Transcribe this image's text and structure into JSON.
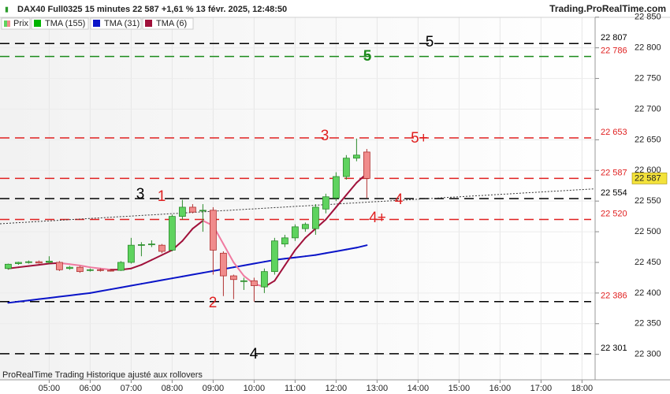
{
  "chart_data": {
    "type": "candlestick",
    "title": "DAX40 Full0325 15 minutes 22 587 +1,61 % 13 févr. 2025, 12:48:50",
    "source": "Trading.ProRealTime.com",
    "footer": "ProRealTime Trading  Historique ajusté aux rollovers",
    "price_name": "Prix",
    "up_color": "#5fd35f",
    "down_color": "#f08c8c",
    "x": [
      4,
      4.25,
      4.5,
      4.75,
      5,
      5.25,
      5.5,
      5.75,
      6,
      6.25,
      6.5,
      6.75,
      7,
      7.25,
      7.5,
      7.75,
      8,
      8.25,
      8.5,
      8.75,
      9,
      9.25,
      9.5,
      9.75,
      10,
      10.25,
      10.5,
      10.75,
      11,
      11.25,
      11.5,
      11.75,
      12,
      12.25,
      12.5,
      12.75
    ],
    "open": [
      22440,
      22448,
      22450,
      22451,
      22450,
      22450,
      22440,
      22442,
      22437,
      22438,
      22437,
      22437,
      22450,
      22478,
      22479,
      22478,
      22470,
      22525,
      22540,
      22534,
      22535,
      22465,
      22428,
      22420,
      22420,
      22410,
      22435,
      22480,
      22490,
      22505,
      22505,
      22537,
      22555,
      22590,
      22620,
      22630
    ],
    "high": [
      22448,
      22451,
      22453,
      22453,
      22460,
      22452,
      22444,
      22444,
      22440,
      22440,
      22439,
      22452,
      22490,
      22483,
      22486,
      22480,
      22528,
      22552,
      22545,
      22545,
      22540,
      22468,
      22430,
      22425,
      22425,
      22440,
      22490,
      22495,
      22512,
      22515,
      22545,
      22562,
      22597,
      22625,
      22652,
      22635
    ],
    "low": [
      22438,
      22446,
      22448,
      22448,
      22448,
      22436,
      22438,
      22433,
      22435,
      22435,
      22435,
      22436,
      22448,
      22460,
      22475,
      22465,
      22468,
      22520,
      22530,
      22500,
      22430,
      22395,
      22390,
      22405,
      22386,
      22400,
      22430,
      22475,
      22485,
      22500,
      22495,
      22530,
      22550,
      22585,
      22615,
      22555
    ],
    "close": [
      22447,
      22450,
      22451,
      22449,
      22452,
      22438,
      22442,
      22435,
      22438,
      22437,
      22436,
      22450,
      22478,
      22479,
      22480,
      22468,
      22525,
      22540,
      22532,
      22535,
      22470,
      22428,
      22422,
      22420,
      22412,
      22435,
      22485,
      22490,
      22508,
      22512,
      22540,
      22557,
      22590,
      22620,
      22625,
      22587
    ],
    "series": [
      {
        "name": "TMA (155)",
        "color": "#00b400",
        "values": [
          null,
          null,
          null,
          null,
          null,
          null,
          null,
          null,
          null,
          null,
          null,
          null,
          null,
          null,
          null,
          null,
          null,
          null,
          null,
          null,
          null,
          null,
          null,
          null,
          null,
          null,
          null,
          null,
          null,
          null,
          null,
          null,
          null,
          null,
          null,
          null
        ]
      },
      {
        "name": "TMA (31)",
        "color": "#0a14c8",
        "values": [
          22384,
          22386,
          22388,
          22390,
          22392,
          22394,
          22396,
          22398,
          22400,
          22403,
          22406,
          22409,
          22412,
          22415,
          22418,
          22421,
          22424,
          22427,
          22430,
          22433,
          22436,
          22439,
          22442,
          22445,
          22448,
          22451,
          22454,
          22456,
          22458,
          22460,
          22462,
          22465,
          22468,
          22471,
          22474,
          22478
        ]
      },
      {
        "name": "TMA (6)",
        "color": "#a0103a",
        "falling_color": "#f07aa0",
        "values": [
          22440,
          22442,
          22444,
          22446,
          22448,
          22449,
          22447,
          22445,
          22442,
          22440,
          22438,
          22438,
          22440,
          22446,
          22454,
          22462,
          22470,
          22485,
          22505,
          22518,
          22510,
          22480,
          22450,
          22428,
          22415,
          22410,
          22420,
          22445,
          22470,
          22490,
          22505,
          22520,
          22540,
          22560,
          22580,
          22595
        ]
      }
    ],
    "levels": [
      {
        "value": 22807,
        "label": "22 807",
        "line_color": "#000000",
        "label_color": "#000000"
      },
      {
        "value": 22786,
        "label": "22 786",
        "line_color": "#1a8a1a",
        "label_color": "#e02020"
      },
      {
        "value": 22653,
        "label": "22 653",
        "line_color": "#e02020",
        "label_color": "#e02020"
      },
      {
        "value": 22587,
        "label": "22 587",
        "line_color": "#e02020",
        "label_color": "#e02020"
      },
      {
        "value": 22554,
        "label": "22 554",
        "line_color": "#000000",
        "label_color": "#000000"
      },
      {
        "value": 22520,
        "label": "22 520",
        "line_color": "#e02020",
        "label_color": "#e02020"
      },
      {
        "value": 22386,
        "label": "22 386",
        "line_color": "#000000",
        "label_color": "#e02020"
      },
      {
        "value": 22301,
        "label": "22 301",
        "line_color": "#000000",
        "label_color": "#000000"
      }
    ],
    "last": {
      "value": 22587,
      "label": "22 587",
      "color": "#f3e23a"
    },
    "trendline": {
      "values": [
        22513,
        22570
      ]
    },
    "annotations": [
      "5",
      "5",
      "3",
      "5+",
      "3",
      "1",
      "4",
      "4+",
      "2",
      "4"
    ],
    "xlim": [
      3.8,
      18.32
    ],
    "xticks": [
      {
        "value": 5,
        "label": "05:00"
      },
      {
        "value": 6,
        "label": "06:00"
      },
      {
        "value": 7,
        "label": "07:00"
      },
      {
        "value": 8,
        "label": "08:00"
      },
      {
        "value": 9,
        "label": "09:00"
      },
      {
        "value": 10,
        "label": "10:00"
      },
      {
        "value": 11,
        "label": "11:00"
      },
      {
        "value": 12,
        "label": "12:00"
      },
      {
        "value": 13,
        "label": "13:00"
      },
      {
        "value": 14,
        "label": "14:00"
      },
      {
        "value": 15,
        "label": "15:00"
      },
      {
        "value": 16,
        "label": "16:00"
      },
      {
        "value": 17,
        "label": "17:00"
      },
      {
        "value": 18,
        "label": "18:00"
      }
    ],
    "ylim": [
      22261,
      22878
    ],
    "yticks": [
      {
        "value": 22850,
        "label": "22 850"
      },
      {
        "value": 22800,
        "label": "22 800"
      },
      {
        "value": 22750,
        "label": "22 750"
      },
      {
        "value": 22700,
        "label": "22 700"
      },
      {
        "value": 22650,
        "label": "22 650"
      },
      {
        "value": 22600,
        "label": "22 600"
      },
      {
        "value": 22550,
        "label": "22 550"
      },
      {
        "value": 22500,
        "label": "22 500"
      },
      {
        "value": 22450,
        "label": "22 450"
      },
      {
        "value": 22400,
        "label": "22 400"
      },
      {
        "value": 22350,
        "label": "22 350"
      },
      {
        "value": 22300,
        "label": "22 300"
      }
    ],
    "grid": true
  }
}
